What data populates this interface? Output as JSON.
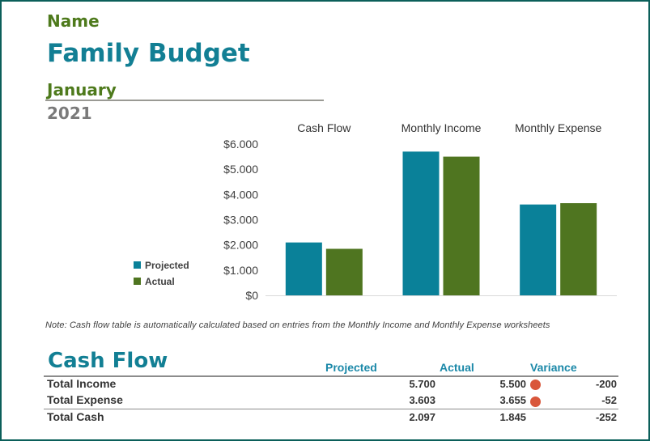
{
  "header": {
    "name_label": "Name",
    "title": "Family Budget",
    "month": "January",
    "year": "2021"
  },
  "colors": {
    "projected": "#0a8199",
    "actual": "#4f7520",
    "title": "#127f94",
    "variance_indicator": "#d9573b"
  },
  "chart_data": {
    "type": "bar",
    "title": "",
    "categories": [
      "Cash Flow",
      "Monthly Income",
      "Monthly Expense"
    ],
    "series": [
      {
        "name": "Projected",
        "values": [
          2097,
          5700,
          3603
        ]
      },
      {
        "name": "Actual",
        "values": [
          1845,
          5500,
          3655
        ]
      }
    ],
    "ylim": [
      0,
      6000
    ],
    "yticks": [
      "$0",
      "$1.000",
      "$2.000",
      "$3.000",
      "$4.000",
      "$5.000",
      "$6.000"
    ],
    "xlabel": "",
    "ylabel": "",
    "legend": "left",
    "category_labels_position": "top"
  },
  "note": "Note: Cash flow table is automatically calculated based on entries from the Monthly Income and Monthly Expense worksheets",
  "cash_flow": {
    "title": "Cash Flow",
    "headers": {
      "projected": "Projected",
      "actual": "Actual",
      "variance": "Variance"
    },
    "rows": [
      {
        "label": "Total Income",
        "projected": "5.700",
        "actual": "5.500",
        "variance": "-200",
        "indicator": "red-dot"
      },
      {
        "label": "Total Expense",
        "projected": "3.603",
        "actual": "3.655",
        "variance": "-52",
        "indicator": "red-dot"
      },
      {
        "label": "Total Cash",
        "projected": "2.097",
        "actual": "1.845",
        "variance": "-252"
      }
    ]
  }
}
